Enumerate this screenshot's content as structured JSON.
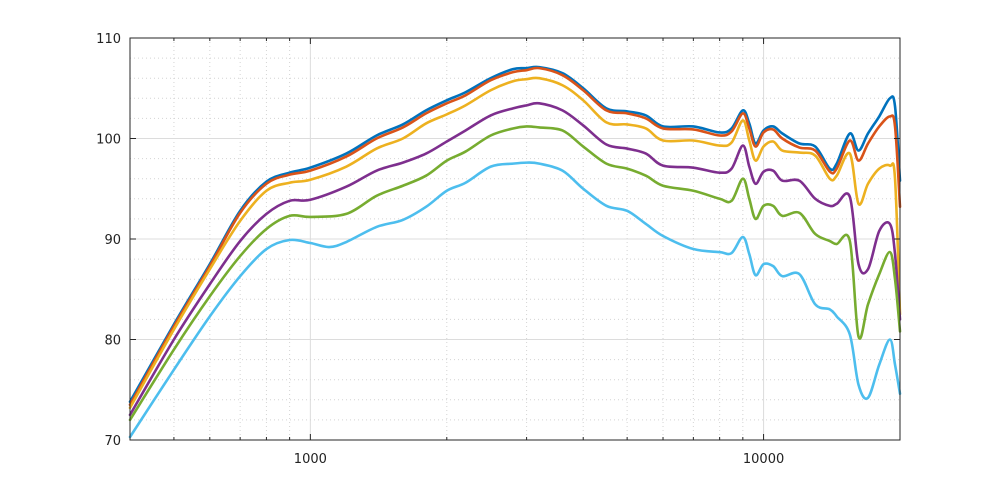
{
  "chart_data": {
    "type": "line",
    "title": "",
    "xlabel": "",
    "ylabel": "",
    "x_scale": "log",
    "xlim": [
      400,
      20000
    ],
    "ylim": [
      70,
      110
    ],
    "grid": true,
    "legend": "none",
    "x_ticks": [
      {
        "value": 1000,
        "label": "1000"
      },
      {
        "value": 10000,
        "label": "10000"
      }
    ],
    "y_ticks": [
      {
        "value": 70,
        "label": "70"
      },
      {
        "value": 80,
        "label": "80"
      },
      {
        "value": 90,
        "label": "90"
      },
      {
        "value": 100,
        "label": "100"
      },
      {
        "value": 110,
        "label": "110"
      }
    ],
    "series": [
      {
        "color": "#0072BD",
        "points": [
          [
            400,
            73.8
          ],
          [
            500,
            81.5
          ],
          [
            600,
            87.5
          ],
          [
            700,
            92.8
          ],
          [
            800,
            95.7
          ],
          [
            900,
            96.6
          ],
          [
            1000,
            97.1
          ],
          [
            1200,
            98.5
          ],
          [
            1400,
            100.3
          ],
          [
            1600,
            101.4
          ],
          [
            1800,
            102.8
          ],
          [
            2000,
            103.8
          ],
          [
            2200,
            104.6
          ],
          [
            2500,
            106.0
          ],
          [
            2800,
            106.9
          ],
          [
            3000,
            107.0
          ],
          [
            3200,
            107.1
          ],
          [
            3600,
            106.5
          ],
          [
            4000,
            105.0
          ],
          [
            4500,
            103.0
          ],
          [
            5000,
            102.7
          ],
          [
            5500,
            102.3
          ],
          [
            6000,
            101.2
          ],
          [
            7000,
            101.2
          ],
          [
            8000,
            100.6
          ],
          [
            8500,
            101.0
          ],
          [
            9000,
            102.8
          ],
          [
            9300,
            101.5
          ],
          [
            9600,
            99.5
          ],
          [
            10000,
            100.8
          ],
          [
            10500,
            101.2
          ],
          [
            11000,
            100.5
          ],
          [
            12000,
            99.5
          ],
          [
            13000,
            99.2
          ],
          [
            14000,
            97.0
          ],
          [
            14500,
            97.5
          ],
          [
            15500,
            100.5
          ],
          [
            16200,
            98.8
          ],
          [
            17000,
            100.5
          ],
          [
            18000,
            102.2
          ],
          [
            19000,
            104.0
          ],
          [
            19500,
            103.2
          ],
          [
            20000,
            95.8
          ]
        ]
      },
      {
        "color": "#D95319",
        "points": [
          [
            400,
            73.5
          ],
          [
            500,
            81.3
          ],
          [
            600,
            87.3
          ],
          [
            700,
            92.6
          ],
          [
            800,
            95.5
          ],
          [
            900,
            96.4
          ],
          [
            1000,
            96.8
          ],
          [
            1200,
            98.2
          ],
          [
            1400,
            100.0
          ],
          [
            1600,
            101.1
          ],
          [
            1800,
            102.5
          ],
          [
            2000,
            103.5
          ],
          [
            2200,
            104.3
          ],
          [
            2500,
            105.8
          ],
          [
            2800,
            106.6
          ],
          [
            3000,
            106.8
          ],
          [
            3200,
            107.0
          ],
          [
            3600,
            106.3
          ],
          [
            4000,
            104.8
          ],
          [
            4500,
            102.8
          ],
          [
            5000,
            102.5
          ],
          [
            5500,
            102.0
          ],
          [
            6000,
            101.0
          ],
          [
            7000,
            100.9
          ],
          [
            8000,
            100.3
          ],
          [
            8500,
            100.7
          ],
          [
            9000,
            102.5
          ],
          [
            9300,
            101.0
          ],
          [
            9600,
            99.2
          ],
          [
            10000,
            100.6
          ],
          [
            10500,
            100.9
          ],
          [
            11000,
            100.0
          ],
          [
            12000,
            99.1
          ],
          [
            13000,
            98.8
          ],
          [
            14000,
            96.7
          ],
          [
            14500,
            97.0
          ],
          [
            15500,
            99.8
          ],
          [
            16200,
            97.8
          ],
          [
            17000,
            99.5
          ],
          [
            18000,
            101.2
          ],
          [
            19000,
            102.2
          ],
          [
            19500,
            101.2
          ],
          [
            20000,
            93.2
          ]
        ]
      },
      {
        "color": "#EDB120",
        "points": [
          [
            400,
            73.2
          ],
          [
            500,
            81.0
          ],
          [
            600,
            87.0
          ],
          [
            700,
            91.8
          ],
          [
            800,
            94.8
          ],
          [
            900,
            95.6
          ],
          [
            1000,
            95.9
          ],
          [
            1200,
            97.2
          ],
          [
            1400,
            99.0
          ],
          [
            1600,
            100.0
          ],
          [
            1800,
            101.5
          ],
          [
            2000,
            102.4
          ],
          [
            2200,
            103.3
          ],
          [
            2500,
            104.8
          ],
          [
            2800,
            105.7
          ],
          [
            3000,
            105.9
          ],
          [
            3200,
            106.0
          ],
          [
            3600,
            105.3
          ],
          [
            4000,
            103.8
          ],
          [
            4500,
            101.6
          ],
          [
            5000,
            101.4
          ],
          [
            5500,
            101.0
          ],
          [
            6000,
            99.8
          ],
          [
            7000,
            99.8
          ],
          [
            8000,
            99.3
          ],
          [
            8500,
            99.6
          ],
          [
            9000,
            101.8
          ],
          [
            9300,
            99.8
          ],
          [
            9600,
            97.8
          ],
          [
            10000,
            99.2
          ],
          [
            10500,
            99.7
          ],
          [
            11000,
            98.8
          ],
          [
            12000,
            98.6
          ],
          [
            13000,
            98.3
          ],
          [
            14000,
            96.0
          ],
          [
            14500,
            96.3
          ],
          [
            15500,
            98.5
          ],
          [
            16200,
            93.5
          ],
          [
            17000,
            95.5
          ],
          [
            18000,
            97.0
          ],
          [
            19000,
            97.3
          ],
          [
            19500,
            96.0
          ],
          [
            20000,
            82.5
          ]
        ]
      },
      {
        "color": "#7E2F8E",
        "points": [
          [
            400,
            72.5
          ],
          [
            500,
            80.0
          ],
          [
            600,
            85.5
          ],
          [
            700,
            89.8
          ],
          [
            800,
            92.5
          ],
          [
            900,
            93.8
          ],
          [
            1000,
            93.9
          ],
          [
            1200,
            95.2
          ],
          [
            1400,
            96.8
          ],
          [
            1600,
            97.6
          ],
          [
            1800,
            98.5
          ],
          [
            2000,
            99.7
          ],
          [
            2200,
            100.8
          ],
          [
            2500,
            102.3
          ],
          [
            2800,
            103.0
          ],
          [
            3000,
            103.3
          ],
          [
            3200,
            103.5
          ],
          [
            3600,
            102.8
          ],
          [
            4000,
            101.3
          ],
          [
            4500,
            99.4
          ],
          [
            5000,
            99.0
          ],
          [
            5500,
            98.5
          ],
          [
            6000,
            97.3
          ],
          [
            7000,
            97.1
          ],
          [
            8000,
            96.6
          ],
          [
            8500,
            97.0
          ],
          [
            9000,
            99.3
          ],
          [
            9300,
            97.2
          ],
          [
            9600,
            95.5
          ],
          [
            10000,
            96.7
          ],
          [
            10500,
            96.8
          ],
          [
            11000,
            95.8
          ],
          [
            12000,
            95.8
          ],
          [
            13000,
            94.0
          ],
          [
            14000,
            93.3
          ],
          [
            14500,
            93.5
          ],
          [
            15500,
            94.2
          ],
          [
            16200,
            87.5
          ],
          [
            17000,
            87.0
          ],
          [
            18000,
            90.8
          ],
          [
            19000,
            91.5
          ],
          [
            19500,
            88.5
          ],
          [
            20000,
            82.0
          ]
        ]
      },
      {
        "color": "#77AC30",
        "points": [
          [
            400,
            72.0
          ],
          [
            500,
            79.0
          ],
          [
            600,
            84.3
          ],
          [
            700,
            88.3
          ],
          [
            800,
            91.0
          ],
          [
            900,
            92.3
          ],
          [
            1000,
            92.2
          ],
          [
            1200,
            92.5
          ],
          [
            1400,
            94.3
          ],
          [
            1600,
            95.3
          ],
          [
            1800,
            96.3
          ],
          [
            2000,
            97.8
          ],
          [
            2200,
            98.7
          ],
          [
            2500,
            100.3
          ],
          [
            2800,
            101.0
          ],
          [
            3000,
            101.2
          ],
          [
            3200,
            101.1
          ],
          [
            3600,
            100.8
          ],
          [
            4000,
            99.2
          ],
          [
            4500,
            97.5
          ],
          [
            5000,
            97.0
          ],
          [
            5500,
            96.3
          ],
          [
            6000,
            95.3
          ],
          [
            7000,
            94.8
          ],
          [
            8000,
            94.0
          ],
          [
            8500,
            93.8
          ],
          [
            9000,
            96.0
          ],
          [
            9300,
            94.0
          ],
          [
            9600,
            92.0
          ],
          [
            10000,
            93.3
          ],
          [
            10500,
            93.3
          ],
          [
            11000,
            92.3
          ],
          [
            12000,
            92.6
          ],
          [
            13000,
            90.5
          ],
          [
            14000,
            89.8
          ],
          [
            14500,
            89.5
          ],
          [
            15500,
            89.8
          ],
          [
            16200,
            80.3
          ],
          [
            17000,
            83.5
          ],
          [
            18000,
            86.5
          ],
          [
            19000,
            88.7
          ],
          [
            19500,
            86.0
          ],
          [
            20000,
            80.8
          ]
        ]
      },
      {
        "color": "#4DBEEE",
        "points": [
          [
            400,
            70.3
          ],
          [
            500,
            77.0
          ],
          [
            600,
            82.3
          ],
          [
            700,
            86.3
          ],
          [
            800,
            89.0
          ],
          [
            900,
            89.9
          ],
          [
            1000,
            89.6
          ],
          [
            1100,
            89.2
          ],
          [
            1200,
            89.7
          ],
          [
            1400,
            91.2
          ],
          [
            1600,
            91.9
          ],
          [
            1800,
            93.2
          ],
          [
            2000,
            94.8
          ],
          [
            2200,
            95.6
          ],
          [
            2500,
            97.2
          ],
          [
            2800,
            97.5
          ],
          [
            3000,
            97.6
          ],
          [
            3200,
            97.5
          ],
          [
            3600,
            96.8
          ],
          [
            4000,
            95.0
          ],
          [
            4500,
            93.3
          ],
          [
            5000,
            92.8
          ],
          [
            5500,
            91.5
          ],
          [
            6000,
            90.3
          ],
          [
            7000,
            89.0
          ],
          [
            8000,
            88.7
          ],
          [
            8500,
            88.6
          ],
          [
            9000,
            90.2
          ],
          [
            9300,
            88.5
          ],
          [
            9600,
            86.4
          ],
          [
            10000,
            87.5
          ],
          [
            10500,
            87.3
          ],
          [
            11000,
            86.3
          ],
          [
            12000,
            86.5
          ],
          [
            13000,
            83.5
          ],
          [
            14000,
            83.0
          ],
          [
            14500,
            82.3
          ],
          [
            15500,
            80.5
          ],
          [
            16200,
            75.5
          ],
          [
            17000,
            74.2
          ],
          [
            18000,
            77.5
          ],
          [
            19000,
            80.0
          ],
          [
            19500,
            77.5
          ],
          [
            20000,
            74.6
          ]
        ]
      }
    ]
  }
}
